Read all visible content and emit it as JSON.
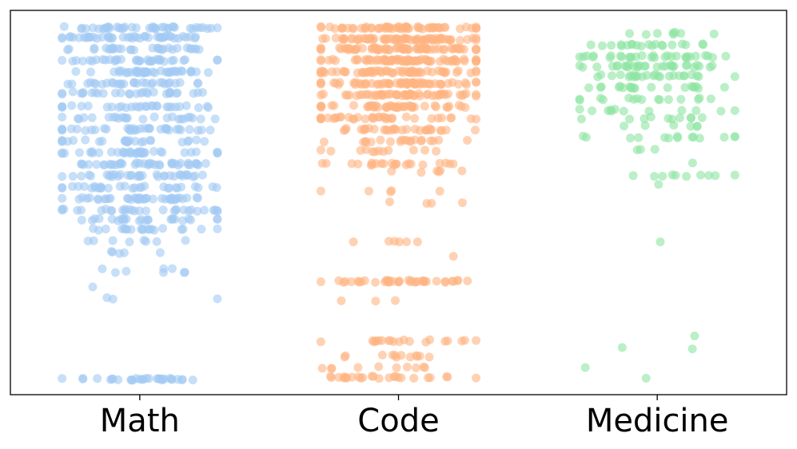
{
  "chart_data": {
    "type": "scatter",
    "subtype": "strip (jittered)",
    "title": "",
    "xlabel": "",
    "ylabel": "",
    "y_tick_labels_visible": false,
    "ylim": [
      0.0,
      1.0
    ],
    "grid": false,
    "legend": "none",
    "categories": [
      "Math",
      "Code",
      "Medicine"
    ],
    "series": [
      {
        "category": "Math",
        "color": "#a1c9f4",
        "alpha": 0.6,
        "clusters": [
          {
            "y": 0.955,
            "count": 40
          },
          {
            "y": 0.93,
            "count": 45
          },
          {
            "y": 0.9,
            "count": 30
          },
          {
            "y": 0.87,
            "count": 35
          },
          {
            "y": 0.84,
            "count": 40
          },
          {
            "y": 0.81,
            "count": 30
          },
          {
            "y": 0.785,
            "count": 30
          },
          {
            "y": 0.75,
            "count": 30
          },
          {
            "y": 0.72,
            "count": 25
          },
          {
            "y": 0.69,
            "count": 35
          },
          {
            "y": 0.66,
            "count": 25
          },
          {
            "y": 0.63,
            "count": 35
          },
          {
            "y": 0.6,
            "count": 40
          },
          {
            "y": 0.57,
            "count": 35
          },
          {
            "y": 0.54,
            "count": 30
          },
          {
            "y": 0.51,
            "count": 40
          },
          {
            "y": 0.48,
            "count": 30
          },
          {
            "y": 0.455,
            "count": 25
          },
          {
            "y": 0.43,
            "count": 20
          },
          {
            "y": 0.4,
            "count": 8
          },
          {
            "y": 0.37,
            "count": 5
          },
          {
            "y": 0.33,
            "count": 3
          },
          {
            "y": 0.32,
            "count": 5
          },
          {
            "y": 0.28,
            "count": 1
          },
          {
            "y": 0.25,
            "count": 3
          },
          {
            "y": 0.04,
            "count": 30
          }
        ]
      },
      {
        "category": "Code",
        "color": "#ffb482",
        "alpha": 0.6,
        "clusters": [
          {
            "y": 0.955,
            "count": 60
          },
          {
            "y": 0.925,
            "count": 70
          },
          {
            "y": 0.9,
            "count": 70
          },
          {
            "y": 0.87,
            "count": 70
          },
          {
            "y": 0.84,
            "count": 60
          },
          {
            "y": 0.81,
            "count": 60
          },
          {
            "y": 0.78,
            "count": 55
          },
          {
            "y": 0.75,
            "count": 45
          },
          {
            "y": 0.72,
            "count": 35
          },
          {
            "y": 0.69,
            "count": 30
          },
          {
            "y": 0.66,
            "count": 20
          },
          {
            "y": 0.635,
            "count": 12
          },
          {
            "y": 0.6,
            "count": 22
          },
          {
            "y": 0.58,
            "count": 6
          },
          {
            "y": 0.53,
            "count": 5
          },
          {
            "y": 0.5,
            "count": 4
          },
          {
            "y": 0.4,
            "count": 6
          },
          {
            "y": 0.36,
            "count": 1
          },
          {
            "y": 0.295,
            "count": 40
          },
          {
            "y": 0.245,
            "count": 3
          },
          {
            "y": 0.14,
            "count": 20
          },
          {
            "y": 0.1,
            "count": 12
          },
          {
            "y": 0.07,
            "count": 10
          },
          {
            "y": 0.045,
            "count": 25
          }
        ]
      },
      {
        "category": "Medicine",
        "color": "#8de5a1",
        "alpha": 0.6,
        "clusters": [
          {
            "y": 0.94,
            "count": 8
          },
          {
            "y": 0.91,
            "count": 20
          },
          {
            "y": 0.88,
            "count": 30
          },
          {
            "y": 0.855,
            "count": 30
          },
          {
            "y": 0.83,
            "count": 25
          },
          {
            "y": 0.8,
            "count": 20
          },
          {
            "y": 0.77,
            "count": 15
          },
          {
            "y": 0.74,
            "count": 12
          },
          {
            "y": 0.72,
            "count": 10
          },
          {
            "y": 0.7,
            "count": 6
          },
          {
            "y": 0.67,
            "count": 14
          },
          {
            "y": 0.64,
            "count": 3
          },
          {
            "y": 0.6,
            "count": 1
          },
          {
            "y": 0.57,
            "count": 10
          },
          {
            "y": 0.55,
            "count": 1
          },
          {
            "y": 0.4,
            "count": 1
          },
          {
            "y": 0.15,
            "count": 1
          },
          {
            "y": 0.12,
            "count": 2
          },
          {
            "y": 0.07,
            "count": 1
          },
          {
            "y": 0.04,
            "count": 1
          }
        ]
      }
    ]
  }
}
